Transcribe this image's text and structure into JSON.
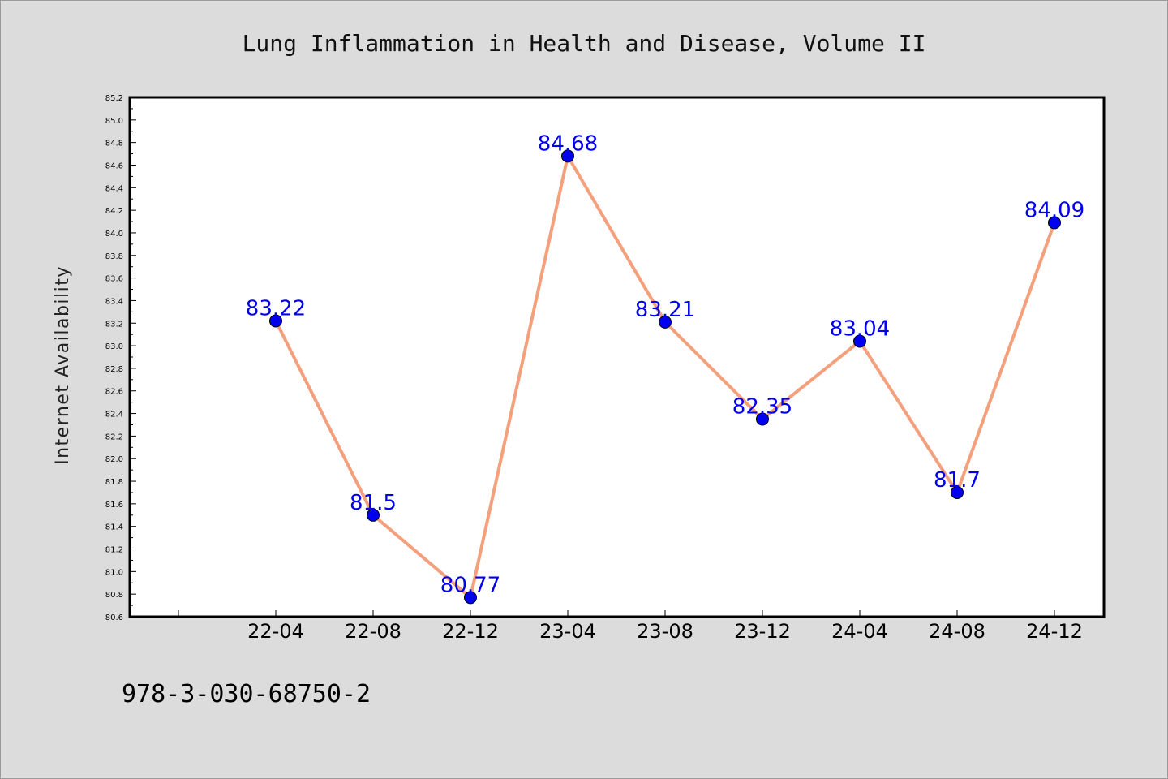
{
  "chart_data": {
    "type": "line",
    "title": "Lung Inflammation in Health and Disease, Volume II",
    "xlabel": "",
    "ylabel": "Internet Availability",
    "categories": [
      "22-04",
      "22-08",
      "22-12",
      "23-04",
      "23-08",
      "23-12",
      "24-04",
      "24-08",
      "24-12"
    ],
    "series": [
      {
        "values": [
          83.22,
          81.5,
          80.77,
          84.68,
          83.21,
          82.35,
          83.04,
          81.7,
          84.09
        ]
      }
    ],
    "data_labels": [
      "83.22",
      "81.5",
      "80.77",
      "84.68",
      "83.21",
      "82.35",
      "83.04",
      "81.7",
      "84.09"
    ],
    "ylim": [
      80.6,
      85.2
    ],
    "yticks": [
      "80.6",
      "80.8",
      "81.0",
      "81.2",
      "81.4",
      "81.6",
      "81.8",
      "82.0",
      "82.2",
      "82.4",
      "82.6",
      "82.8",
      "83.0",
      "83.2",
      "83.4",
      "83.6",
      "83.8",
      "84.0",
      "84.2",
      "84.4",
      "84.6",
      "84.8",
      "85.0",
      "85.2"
    ],
    "grid": false,
    "line_color": "#f4a07c",
    "marker_color": "#0000ee",
    "label_color": "#0000ee"
  },
  "footer_text": "978-3-030-68750-2"
}
